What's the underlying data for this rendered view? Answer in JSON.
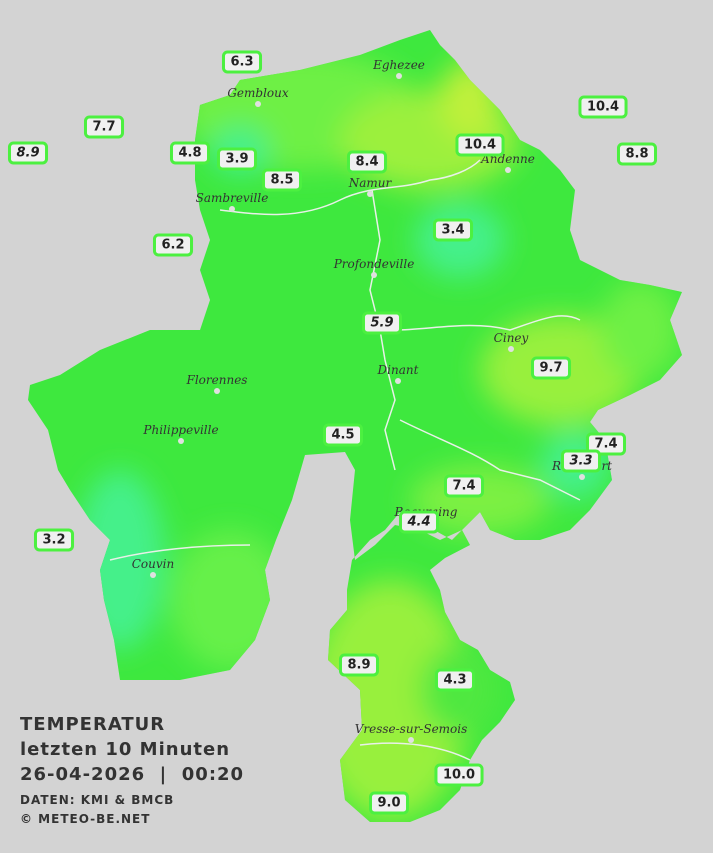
{
  "header": {
    "title": "TEMPERATUR",
    "subtitle": "letzten 10 Minuten",
    "datetime": "26-04-2026  |  00:20",
    "source": "DATEN: KMI & BMCB",
    "copyright": "© METEO-BE.NET"
  },
  "places": [
    {
      "name": "Eghezee"
    },
    {
      "name": "Gembloux"
    },
    {
      "name": "Andenne"
    },
    {
      "name": "Namur"
    },
    {
      "name": "Sambreville"
    },
    {
      "name": "Profondeville"
    },
    {
      "name": "Ciney"
    },
    {
      "name": "Dinant"
    },
    {
      "name": "Florennes"
    },
    {
      "name": "Philippeville"
    },
    {
      "name": "Rochefort"
    },
    {
      "name": "Beauraing"
    },
    {
      "name": "Couvin"
    },
    {
      "name": "Vresse-sur-Semois"
    }
  ],
  "stations": [
    {
      "text": "6.3"
    },
    {
      "text": "7.7"
    },
    {
      "text": "8.9",
      "italic": true
    },
    {
      "text": "4.8"
    },
    {
      "text": "3.9"
    },
    {
      "text": "8.5"
    },
    {
      "text": "8.4"
    },
    {
      "text": "10.4"
    },
    {
      "text": "10.4"
    },
    {
      "text": "8.8"
    },
    {
      "text": "6.2"
    },
    {
      "text": "3.4"
    },
    {
      "text": "5.9",
      "italic": true
    },
    {
      "text": "9.7"
    },
    {
      "text": "4.5"
    },
    {
      "text": "7.4"
    },
    {
      "text": "3.3",
      "italic": true
    },
    {
      "text": "7.4"
    },
    {
      "text": "4.4",
      "italic": true
    },
    {
      "text": "3.2"
    },
    {
      "text": "8.9"
    },
    {
      "text": "4.3"
    },
    {
      "text": "10.0"
    },
    {
      "text": "9.0"
    }
  ]
}
